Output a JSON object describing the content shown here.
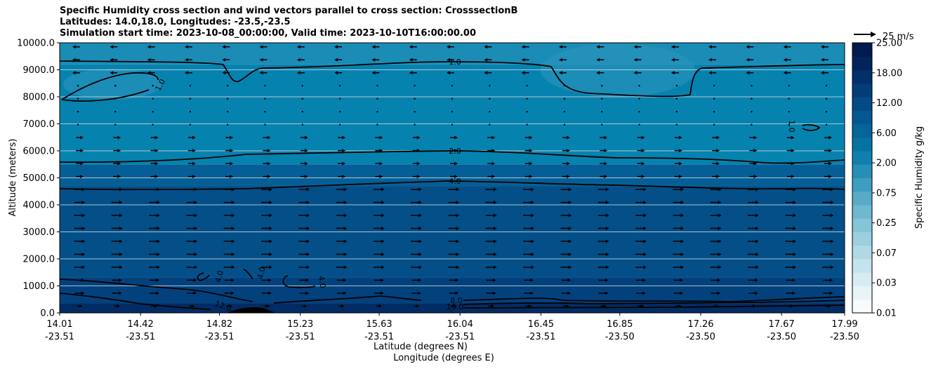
{
  "chart_data": {
    "type": "heatmap",
    "title_lines": [
      "Specific Humidity cross section and wind vectors parallel to cross section: CrosssectionB",
      "Latitudes: 14.0,18.0, Longitudes: -23.5,-23.5",
      "Simulation start time: 2023-10-08_00:00:00, Valid time: 2023-10-10T16:00:00.00"
    ],
    "ylabel": "Altitude (meters)",
    "xlabel_lat": "Latitude (degrees N)",
    "xlabel_lon": "Longitude (degrees E)",
    "ylim": [
      0,
      10000
    ],
    "y_ticks": [
      "0.0",
      "1000.0",
      "2000.0",
      "3000.0",
      "4000.0",
      "5000.0",
      "6000.0",
      "7000.0",
      "8000.0",
      "9000.0",
      "10000.0"
    ],
    "x_ticks": [
      {
        "lat": "14.01",
        "lon": "-23.51"
      },
      {
        "lat": "14.42",
        "lon": "-23.51"
      },
      {
        "lat": "14.82",
        "lon": "-23.51"
      },
      {
        "lat": "15.23",
        "lon": "-23.51"
      },
      {
        "lat": "15.63",
        "lon": "-23.51"
      },
      {
        "lat": "16.04",
        "lon": "-23.51"
      },
      {
        "lat": "16.45",
        "lon": "-23.51"
      },
      {
        "lat": "16.85",
        "lon": "-23.50"
      },
      {
        "lat": "17.26",
        "lon": "-23.50"
      },
      {
        "lat": "17.67",
        "lon": "-23.50"
      },
      {
        "lat": "17.99",
        "lon": "-23.50"
      }
    ],
    "colorbar": {
      "label": "Specific Humidity g/kg",
      "tick_labels": [
        "0.01",
        "0.03",
        "0.07",
        "0.25",
        "0.75",
        "2.00",
        "6.00",
        "12.00",
        "18.00",
        "25.00"
      ],
      "colors": [
        "#f7fbfd",
        "#e8f4f8",
        "#d7ecf2",
        "#c4e3ec",
        "#b1d9e5",
        "#9ccfdf",
        "#86c4d8",
        "#6fb8d0",
        "#57abc7",
        "#3f9ebf",
        "#268fb6",
        "#0f80ad",
        "#0672a4",
        "#05649a",
        "#045790",
        "#044a84",
        "#033d77",
        "#023069",
        "#02245b",
        "#011a4f"
      ]
    },
    "humidity_bands": [
      {
        "range": [
          0,
          350
        ],
        "value": 12.0,
        "color": "#022c64"
      },
      {
        "range": [
          350,
          1300
        ],
        "value": 6.0,
        "color": "#03417d"
      },
      {
        "range": [
          1300,
          4700
        ],
        "value": 4.5,
        "color": "#044f88"
      },
      {
        "range": [
          4700,
          5500
        ],
        "value": 3.0,
        "color": "#055f96"
      },
      {
        "range": [
          5500,
          9200
        ],
        "value": 1.5,
        "color": "#0682af"
      },
      {
        "range": [
          9200,
          10000
        ],
        "value": 1.0,
        "color": "#1a8cb6"
      }
    ],
    "contour_labels": [
      "1.0",
      "1.0",
      "1.0",
      "2.0",
      "4.0",
      "4.0",
      "4.0",
      "4.0",
      "8.0",
      "12.0",
      "16.0"
    ],
    "wind_reference": {
      "value": 25,
      "label": "25 m/s"
    }
  }
}
